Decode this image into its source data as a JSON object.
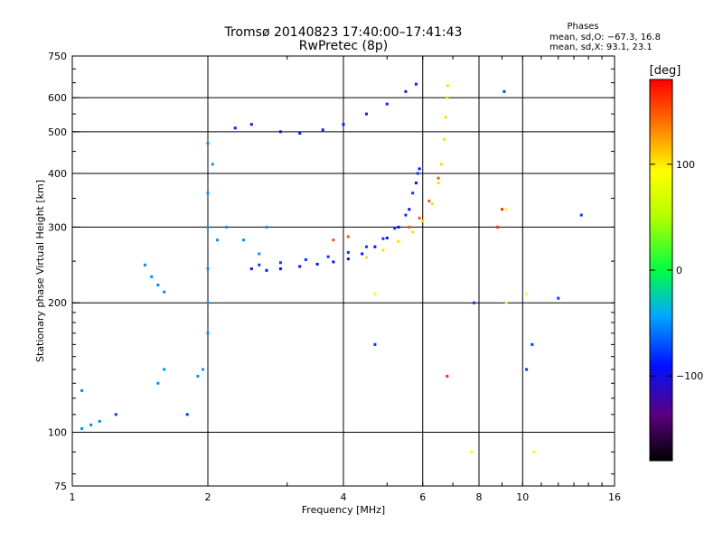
{
  "title": {
    "line1": "Tromsø 20140823 17:40:00–17:41:43",
    "line2": "RwPretec (8p)"
  },
  "phases": {
    "heading": "Phases",
    "line_o": "mean, sd,O: −67.3, 16.8",
    "line_x": "mean, sd,X:  93.1, 23.1"
  },
  "colorbar": {
    "unit": "[deg]",
    "ticks": [
      {
        "value": 100,
        "label": "100"
      },
      {
        "value": 0,
        "label": "0"
      },
      {
        "value": -100,
        "label": "−100"
      }
    ],
    "range": [
      -180,
      180
    ]
  },
  "chart_data": {
    "type": "scatter",
    "title": "Tromsø 20140823 17:40:00–17:41:43",
    "subtitle": "RwPretec (8p)",
    "xlabel": "Frequency [MHz]",
    "ylabel": "Stationary phase Virtual Height [km]",
    "x_scale": "log2",
    "y_scale": "log",
    "xlim": [
      1,
      16
    ],
    "ylim": [
      75,
      750
    ],
    "x_ticks": [
      {
        "value": 1,
        "label": "1"
      },
      {
        "value": 2,
        "label": "2"
      },
      {
        "value": 4,
        "label": "4"
      },
      {
        "value": 6,
        "label": "6"
      },
      {
        "value": 8,
        "label": "8"
      },
      {
        "value": 10,
        "label": "10"
      },
      {
        "value": 16,
        "label": "16"
      }
    ],
    "y_ticks": [
      {
        "value": 75,
        "label": "75"
      },
      {
        "value": 100,
        "label": "100"
      },
      {
        "value": 200,
        "label": "200"
      },
      {
        "value": 300,
        "label": "300"
      },
      {
        "value": 400,
        "label": "400"
      },
      {
        "value": 500,
        "label": "500"
      },
      {
        "value": 600,
        "label": "600"
      },
      {
        "value": 750,
        "label": "750"
      }
    ],
    "x_gridlines": [
      2,
      4,
      6,
      8,
      10
    ],
    "y_gridlines": [
      100,
      200,
      300,
      400,
      500,
      600
    ],
    "grid": true,
    "color_scale": "phase [deg], rainbow: black(-180) → purple → blue(-100) → cyan → green(0) → yellow(100) → red(180)",
    "series": [
      {
        "name": "O",
        "phase_deg": -100,
        "points": [
          [
            2.5,
            240
          ],
          [
            2.7,
            238
          ],
          [
            2.9,
            240
          ],
          [
            3.2,
            243
          ],
          [
            3.5,
            246
          ],
          [
            3.8,
            249
          ],
          [
            4.1,
            253
          ],
          [
            4.4,
            260
          ],
          [
            4.7,
            270
          ],
          [
            5.0,
            283
          ],
          [
            5.3,
            300
          ],
          [
            5.6,
            330
          ],
          [
            5.8,
            380
          ],
          [
            5.9,
            410
          ]
        ]
      },
      {
        "name": "O",
        "phase_deg": -85,
        "points": [
          [
            2.6,
            245
          ],
          [
            2.9,
            248
          ],
          [
            3.3,
            252
          ],
          [
            3.7,
            256
          ],
          [
            4.1,
            262
          ],
          [
            4.5,
            270
          ],
          [
            4.9,
            282
          ],
          [
            5.2,
            298
          ],
          [
            5.5,
            320
          ],
          [
            5.7,
            360
          ],
          [
            5.85,
            400
          ]
        ]
      },
      {
        "name": "",
        "phase_deg": -95,
        "points": [
          [
            2.3,
            510
          ],
          [
            2.5,
            520
          ],
          [
            2.9,
            500
          ],
          [
            3.2,
            496
          ],
          [
            3.6,
            505
          ],
          [
            4.0,
            520
          ],
          [
            4.5,
            550
          ],
          [
            5.0,
            580
          ],
          [
            5.5,
            620
          ],
          [
            5.8,
            645
          ]
        ]
      },
      {
        "name": "X",
        "phase_deg": 105,
        "points": [
          [
            4.5,
            255
          ],
          [
            4.9,
            265
          ],
          [
            5.3,
            278
          ],
          [
            5.7,
            292
          ],
          [
            6.0,
            310
          ],
          [
            6.3,
            340
          ],
          [
            6.5,
            380
          ],
          [
            6.6,
            420
          ],
          [
            6.7,
            480
          ],
          [
            6.75,
            540
          ],
          [
            6.8,
            600
          ],
          [
            6.82,
            640
          ]
        ]
      },
      {
        "name": "X",
        "phase_deg": 150,
        "points": [
          [
            3.8,
            280
          ],
          [
            4.1,
            285
          ],
          [
            5.6,
            300
          ],
          [
            5.9,
            315
          ],
          [
            6.2,
            345
          ],
          [
            6.5,
            390
          ]
        ]
      },
      {
        "name": "",
        "phase_deg": -50,
        "points": [
          [
            2.0,
            200
          ],
          [
            2.0,
            240
          ],
          [
            2.0,
            300
          ],
          [
            2.0,
            360
          ],
          [
            2.05,
            420
          ],
          [
            2.0,
            470
          ],
          [
            2.1,
            280
          ],
          [
            2.2,
            300
          ],
          [
            2.4,
            280
          ],
          [
            2.6,
            260
          ],
          [
            2.7,
            300
          ],
          [
            1.95,
            140
          ],
          [
            1.9,
            135
          ],
          [
            2.0,
            170
          ]
        ]
      },
      {
        "name": "",
        "phase_deg": -55,
        "points": [
          [
            1.05,
            102
          ],
          [
            1.1,
            104
          ],
          [
            1.15,
            106
          ],
          [
            1.45,
            245
          ],
          [
            1.5,
            230
          ],
          [
            1.55,
            220
          ],
          [
            1.6,
            212
          ],
          [
            1.6,
            140
          ],
          [
            1.55,
            130
          ],
          [
            1.05,
            125
          ]
        ]
      },
      {
        "name": "",
        "phase_deg": -85,
        "points": [
          [
            1.8,
            110
          ],
          [
            1.25,
            110
          ],
          [
            4.7,
            160
          ],
          [
            7.8,
            200
          ],
          [
            10.2,
            140
          ],
          [
            10.5,
            160
          ],
          [
            12.0,
            205
          ],
          [
            13.5,
            320
          ],
          [
            9.1,
            620
          ]
        ]
      },
      {
        "name": "",
        "phase_deg": 95,
        "points": [
          [
            7.7,
            90
          ],
          [
            10.6,
            90
          ],
          [
            9.2,
            200
          ],
          [
            10.2,
            210
          ],
          [
            9.2,
            330
          ],
          [
            4.7,
            210
          ]
        ]
      },
      {
        "name": "",
        "phase_deg": 165,
        "points": [
          [
            6.8,
            135
          ],
          [
            8.8,
            300
          ],
          [
            9.0,
            330
          ]
        ]
      }
    ]
  }
}
